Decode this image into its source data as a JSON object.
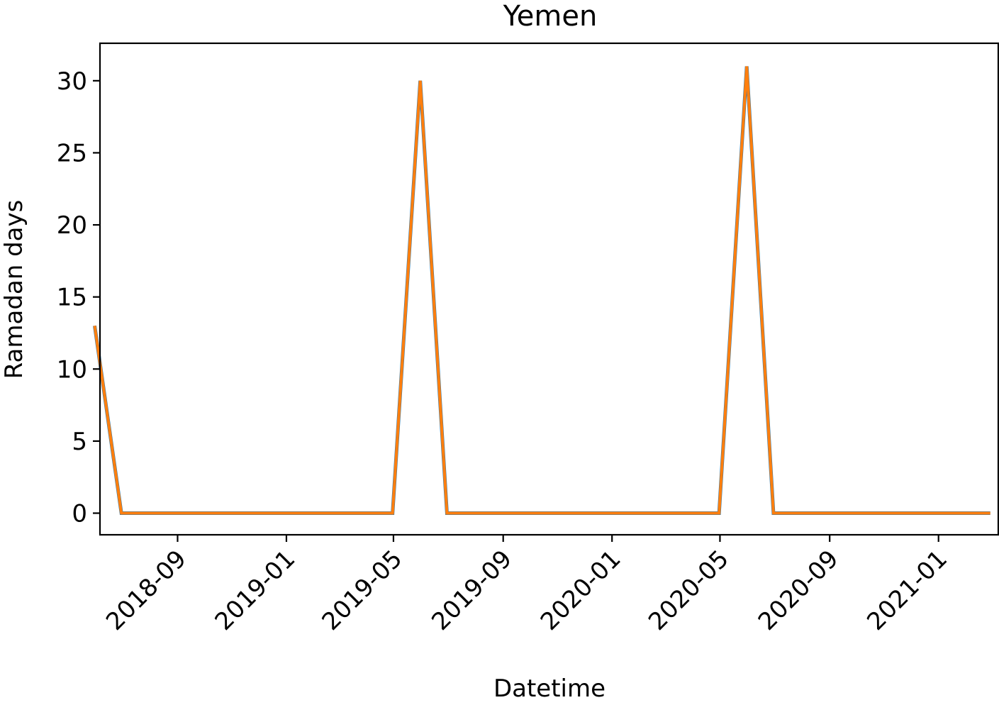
{
  "chart_data": {
    "type": "line",
    "title": "Yemen",
    "xlabel": "Datetime",
    "ylabel": "Ramadan days",
    "ylim": [
      -1.5,
      32.6
    ],
    "xlim": [
      "2018-06-06",
      "2021-03-09"
    ],
    "yticks": [
      0,
      5,
      10,
      15,
      20,
      25,
      30
    ],
    "xticks": [
      "2018-09",
      "2019-01",
      "2019-05",
      "2019-09",
      "2020-01",
      "2020-05",
      "2020-09",
      "2021-01"
    ],
    "grid": false,
    "colors": {
      "line": "#ff7f0e",
      "line_under": "#1f77b4",
      "axes": "#000000"
    },
    "series": [
      {
        "x": [
          "2018-05-31",
          "2018-06-30",
          "2018-07-31",
          "2018-08-31",
          "2018-09-30",
          "2018-10-31",
          "2018-11-30",
          "2018-12-31",
          "2019-01-31",
          "2019-02-28",
          "2019-03-31",
          "2019-04-30",
          "2019-05-31",
          "2019-06-30",
          "2019-07-31",
          "2019-08-31",
          "2019-09-30",
          "2019-10-31",
          "2019-11-30",
          "2019-12-31",
          "2020-01-31",
          "2020-02-29",
          "2020-03-31",
          "2020-04-30",
          "2020-05-31",
          "2020-06-30",
          "2020-07-31",
          "2020-08-31",
          "2020-09-30",
          "2020-10-31",
          "2020-11-30",
          "2020-12-31",
          "2021-01-31",
          "2021-02-28"
        ],
        "values": [
          13,
          0,
          0,
          0,
          0,
          0,
          0,
          0,
          0,
          0,
          0,
          0,
          30,
          0,
          0,
          0,
          0,
          0,
          0,
          0,
          0,
          0,
          0,
          0,
          31,
          0,
          0,
          0,
          0,
          0,
          0,
          0,
          0,
          0
        ]
      }
    ]
  }
}
